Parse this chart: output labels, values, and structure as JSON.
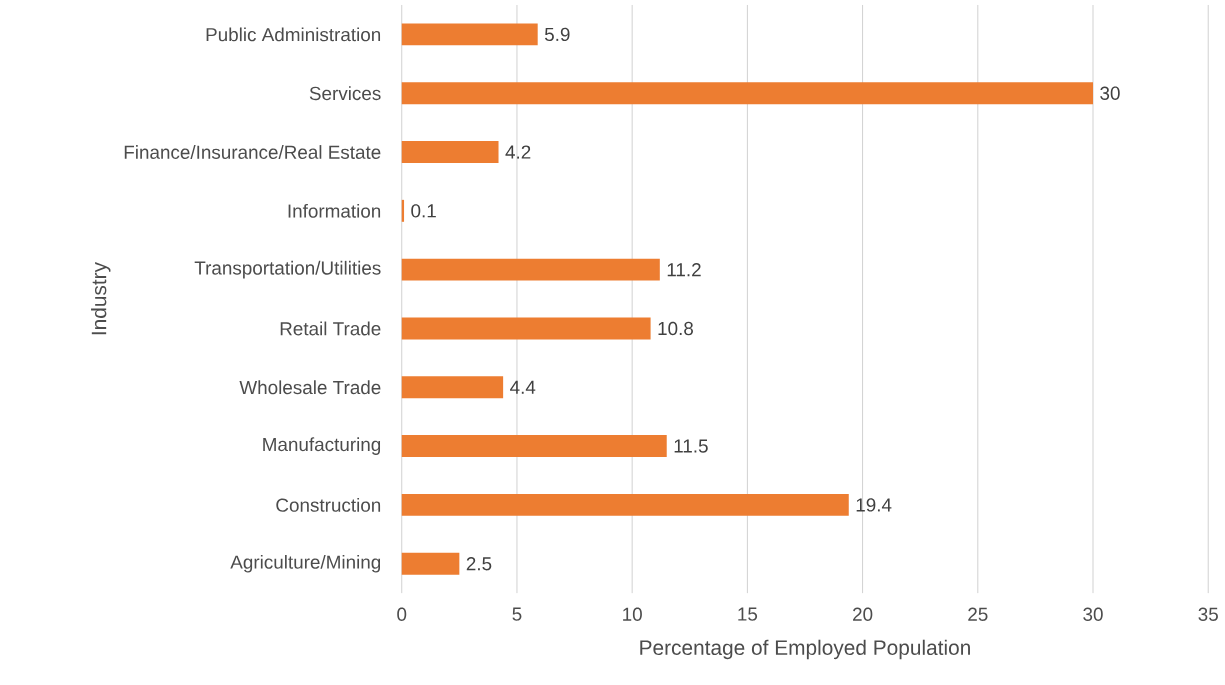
{
  "chart_data": {
    "type": "bar",
    "orientation": "horizontal",
    "xlabel": "Percentage of Employed Population",
    "ylabel": "Industry",
    "categories": [
      "Public Administration",
      "Services",
      "Finance/Insurance/Real Estate",
      "Information",
      "Transportation/Utilities",
      "Retail Trade",
      "Wholesale Trade",
      "Manufacturing",
      "Construction",
      "Agriculture/Mining"
    ],
    "values": [
      5.9,
      30,
      4.2,
      0.1,
      11.2,
      10.8,
      4.4,
      11.5,
      19.4,
      2.5
    ],
    "color": "#ed7d31",
    "xlim": [
      0,
      35
    ],
    "xticks": [
      0,
      5,
      10,
      15,
      20,
      25,
      30,
      35
    ],
    "grid": "x",
    "data_labels": true
  }
}
